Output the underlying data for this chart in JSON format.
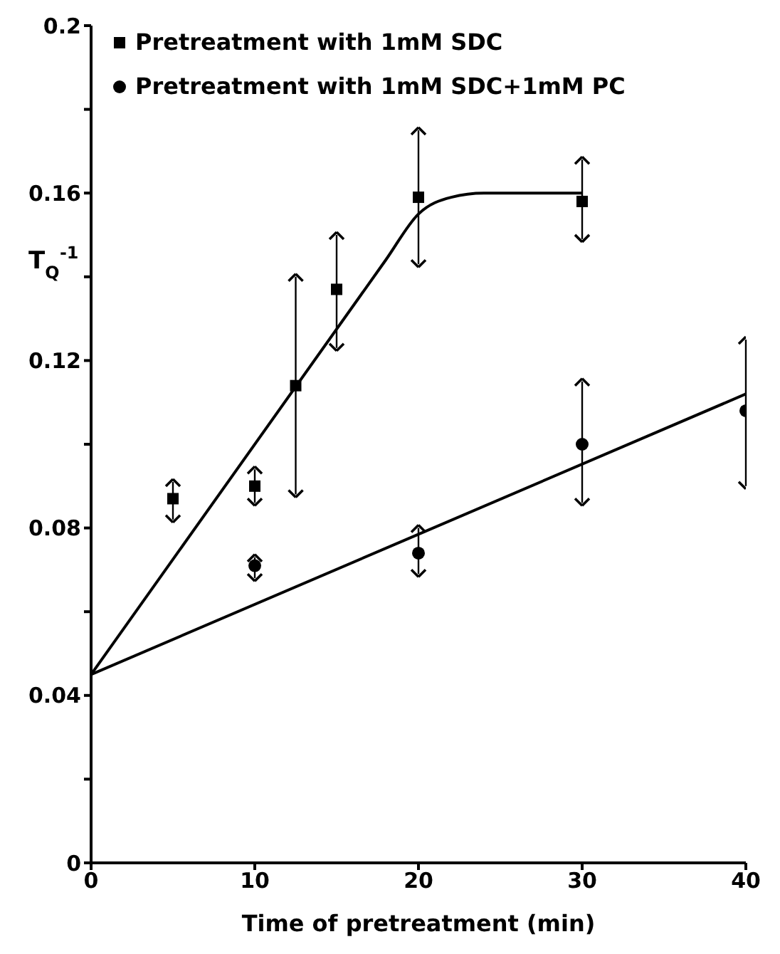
{
  "chart_data": {
    "type": "scatter",
    "xlabel": "Time of pretreatment (min)",
    "ylabel": "T$_{Q}$$^{-1}$",
    "xlim": [
      0,
      40
    ],
    "xticks": [
      0,
      10,
      20,
      30,
      40
    ],
    "ylim": [
      0,
      0.2
    ],
    "yticks": [
      0,
      {
        "value": 0.02,
        "label": null
      },
      0.04,
      {
        "value": 0.06,
        "label": null
      },
      0.08,
      {
        "value": 0.1,
        "label": null
      },
      0.12,
      {
        "value": 0.14,
        "label": null
      },
      0.16,
      {
        "value": 0.18,
        "label": null
      },
      0.2
    ],
    "legend": "top left",
    "grid": false,
    "series": [
      {
        "name": "Pretreatment with 1mM SDC",
        "marker": "square",
        "color": "#000000",
        "x": [
          5,
          10,
          12.5,
          15,
          20,
          30
        ],
        "values": [
          0.087,
          0.09,
          0.114,
          0.137,
          0.159,
          0.158
        ],
        "errors": [
          [
            0.082,
            0.091
          ],
          [
            0.086,
            0.094
          ],
          [
            0.088,
            0.14
          ],
          [
            0.123,
            0.15
          ],
          [
            0.143,
            0.175
          ],
          [
            0.149,
            0.168
          ]
        ]
      },
      {
        "name": "Pretreatment with 1mM SDC+1mM PC",
        "marker": "circle",
        "color": "#000000",
        "x": [
          10,
          20,
          30,
          40
        ],
        "values": [
          0.071,
          0.074,
          0.1,
          0.108
        ],
        "errors": [
          [
            0.068,
            0.073
          ],
          [
            0.069,
            0.08
          ],
          [
            0.086,
            0.115
          ],
          [
            0.09,
            0.125
          ]
        ]
      },
      {
        "type": "line",
        "color": "#000000",
        "marker": "none",
        "line_style": "solid",
        "x": [
          0,
          18,
          20,
          22,
          24,
          30
        ],
        "values": [
          0.045,
          0.144,
          0.155,
          0.159,
          0.16,
          0.16
        ]
      },
      {
        "type": "line",
        "color": "#000000",
        "marker": "none",
        "line_style": "solid",
        "x": [
          0,
          40
        ],
        "values": [
          0.045,
          0.112
        ]
      }
    ]
  }
}
